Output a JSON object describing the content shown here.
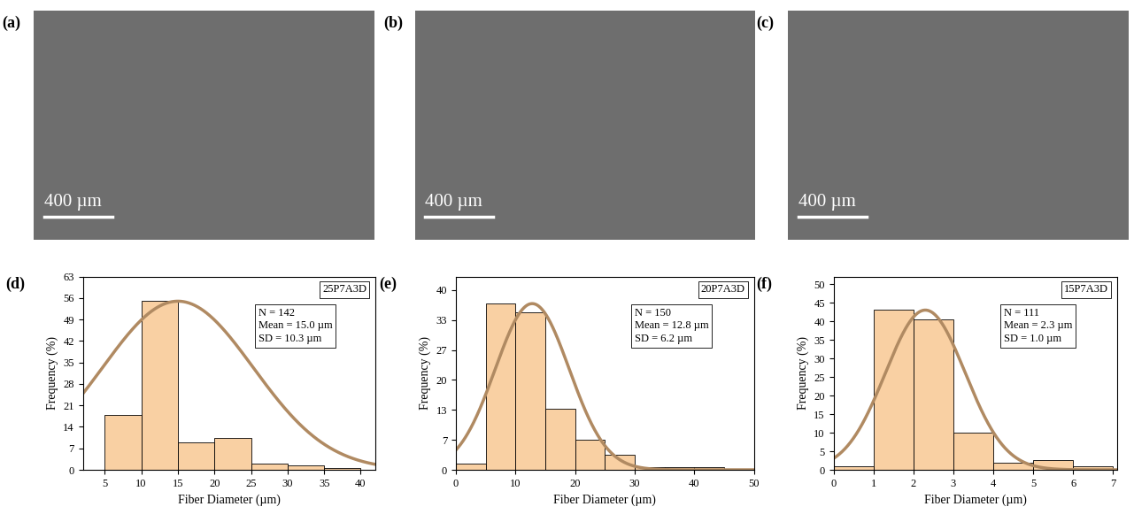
{
  "panels": [
    {
      "label": "(a)",
      "scale_bar": "400 µm"
    },
    {
      "label": "(b)",
      "scale_bar": "400 µm"
    },
    {
      "label": "(c)",
      "scale_bar": "400 µm"
    }
  ],
  "chart_data": [
    {
      "type": "histogram",
      "label": "(d)",
      "sample": "25P7A3D",
      "stats": [
        "N = 142",
        "Mean = 15.0 µm",
        "SD = 10.3 µm"
      ],
      "x_label": "Fiber Diameter (µm)",
      "y_label": "Frequency (%)",
      "bins": [
        5,
        10,
        15,
        20,
        25,
        30,
        35,
        40
      ],
      "values": [
        18,
        55,
        9,
        10.5,
        2,
        1.5,
        0.7
      ],
      "color": "#f9d0a3",
      "fit": {
        "type": "line",
        "color": "#b08a62",
        "mean": 15.0,
        "sd": 10.3,
        "peak": 55
      },
      "xlim": [
        2,
        42
      ],
      "xticks": [
        5,
        10,
        15,
        20,
        25,
        30,
        35,
        40
      ],
      "ylim": [
        0,
        63
      ],
      "yticks": [
        0,
        7,
        14,
        21,
        28,
        35,
        42,
        49,
        56,
        63
      ]
    },
    {
      "type": "histogram",
      "label": "(e)",
      "sample": "20P7A3D",
      "stats": [
        "N = 150",
        "Mean = 12.8 µm",
        "SD = 6.2 µm"
      ],
      "x_label": "Fiber Diameter (µm)",
      "y_label": "Frequency (%)",
      "bins": [
        0,
        5,
        10,
        15,
        20,
        25,
        30,
        35,
        40,
        45
      ],
      "values": [
        1.3,
        37,
        35,
        13.5,
        6.7,
        3.3,
        0.5,
        0.5,
        0.5
      ],
      "color": "#f9d0a3",
      "fit": {
        "type": "line",
        "color": "#b08a62",
        "mean": 12.8,
        "sd": 6.2,
        "peak": 37
      },
      "xlim": [
        0,
        50
      ],
      "xticks": [
        0,
        10,
        20,
        30,
        40,
        50
      ],
      "ylim": [
        0,
        43
      ],
      "yticks": [
        0,
        {
          "value": 6.67,
          "label": "7"
        },
        {
          "value": 13.33,
          "label": "13"
        },
        20,
        {
          "value": 26.67,
          "label": "27"
        },
        {
          "value": 33.33,
          "label": "33"
        },
        40
      ]
    },
    {
      "type": "histogram",
      "label": "(f)",
      "sample": "15P7A3D",
      "stats": [
        "N = 111",
        "Mean = 2.3 µm",
        "SD = 1.0 µm"
      ],
      "x_label": "Fiber Diameter (µm)",
      "y_label": "Frequency (%)",
      "bins": [
        0,
        1,
        2,
        3,
        4,
        5,
        6,
        7
      ],
      "values": [
        0.9,
        43,
        40.5,
        9.9,
        1.8,
        2.7,
        0.9
      ],
      "color": "#f9d0a3",
      "fit": {
        "type": "line",
        "color": "#b08a62",
        "mean": 2.3,
        "sd": 1.0,
        "peak": 43
      },
      "xlim": [
        0,
        7.1
      ],
      "xticks": [
        0,
        1,
        2,
        3,
        4,
        5,
        6,
        7
      ],
      "ylim": [
        0,
        52
      ],
      "yticks": [
        0,
        5,
        10,
        15,
        20,
        25,
        30,
        35,
        40,
        45,
        50
      ]
    }
  ]
}
